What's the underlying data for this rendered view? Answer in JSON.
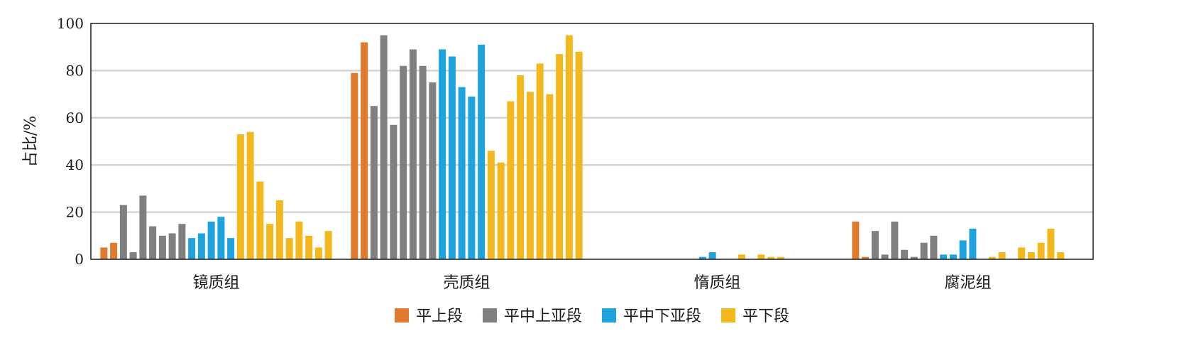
{
  "chart_data": {
    "type": "bar",
    "title": "",
    "xlabel": "",
    "ylabel": "占比/%",
    "ylim": [
      0,
      100
    ],
    "yticks": [
      0,
      20,
      40,
      60,
      80,
      100
    ],
    "grid": "horizontal",
    "legend_position": "bottom",
    "categories": [
      "镜质组",
      "壳质组",
      "惰质组",
      "腐泥组"
    ],
    "series": [
      {
        "name": "平上段",
        "color": "#E07A2F",
        "values": [
          [
            5,
            7
          ],
          [
            79,
            92
          ],
          [
            0,
            0
          ],
          [
            16,
            1
          ]
        ]
      },
      {
        "name": "平中上亚段",
        "color": "#808080",
        "values": [
          [
            23,
            3,
            27,
            14,
            10,
            11,
            15
          ],
          [
            65,
            95,
            57,
            82,
            89,
            82,
            75
          ],
          [
            0,
            0,
            0,
            0,
            0,
            0,
            0
          ],
          [
            12,
            2,
            16,
            4,
            1,
            7,
            10
          ]
        ]
      },
      {
        "name": "平中下亚段",
        "color": "#1FA3DF",
        "values": [
          [
            9,
            11,
            16,
            18,
            9
          ],
          [
            89,
            86,
            73,
            69,
            91
          ],
          [
            0,
            1,
            3,
            0,
            0
          ],
          [
            2,
            2,
            8,
            13,
            0
          ]
        ]
      },
      {
        "name": "平下段",
        "color": "#F2B81E",
        "values": [
          [
            53,
            54,
            33,
            15,
            25,
            9,
            16,
            10,
            5,
            12
          ],
          [
            46,
            41,
            67,
            78,
            71,
            83,
            70,
            87,
            95,
            88
          ],
          [
            2,
            0,
            2,
            1,
            1,
            0,
            0,
            0,
            0,
            0
          ],
          [
            1,
            3,
            0,
            5,
            3,
            7,
            13,
            3,
            0,
            0
          ]
        ]
      }
    ]
  }
}
